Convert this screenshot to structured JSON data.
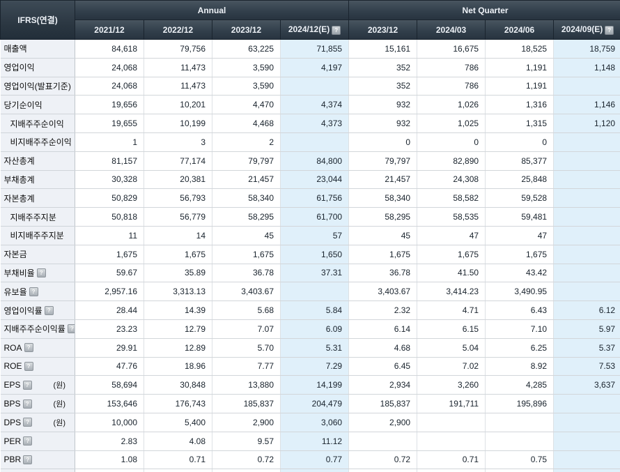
{
  "table": {
    "corner_label": "IFRS(연결)",
    "groups": [
      {
        "label": "Annual"
      },
      {
        "label": "Net Quarter"
      }
    ],
    "columns": [
      {
        "label": "2021/12",
        "estimate": false
      },
      {
        "label": "2022/12",
        "estimate": false
      },
      {
        "label": "2023/12",
        "estimate": false
      },
      {
        "label": "2024/12(E)",
        "estimate": true
      },
      {
        "label": "2023/12",
        "estimate": false
      },
      {
        "label": "2024/03",
        "estimate": false
      },
      {
        "label": "2024/06",
        "estimate": false
      },
      {
        "label": "2024/09(E)",
        "estimate": true
      }
    ],
    "rows": [
      {
        "label": "매출액",
        "indent": false,
        "help": false,
        "unit": "",
        "values": [
          "84,618",
          "79,756",
          "63,225",
          "71,855",
          "15,161",
          "16,675",
          "18,525",
          "18,759"
        ]
      },
      {
        "label": "영업이익",
        "indent": false,
        "help": false,
        "unit": "",
        "values": [
          "24,068",
          "11,473",
          "3,590",
          "4,197",
          "352",
          "786",
          "1,191",
          "1,148"
        ]
      },
      {
        "label": "영업이익(발표기준)",
        "indent": false,
        "help": false,
        "unit": "",
        "values": [
          "24,068",
          "11,473",
          "3,590",
          "",
          "352",
          "786",
          "1,191",
          ""
        ]
      },
      {
        "label": "당기순이익",
        "indent": false,
        "help": false,
        "unit": "",
        "values": [
          "19,656",
          "10,201",
          "4,470",
          "4,374",
          "932",
          "1,026",
          "1,316",
          "1,146"
        ]
      },
      {
        "label": "지배주주순이익",
        "indent": true,
        "help": false,
        "unit": "",
        "values": [
          "19,655",
          "10,199",
          "4,468",
          "4,373",
          "932",
          "1,025",
          "1,315",
          "1,120"
        ]
      },
      {
        "label": "비지배주주순이익",
        "indent": true,
        "help": false,
        "unit": "",
        "values": [
          "1",
          "3",
          "2",
          "",
          "0",
          "0",
          "0",
          ""
        ]
      },
      {
        "label": "자산총계",
        "indent": false,
        "help": false,
        "unit": "",
        "values": [
          "81,157",
          "77,174",
          "79,797",
          "84,800",
          "79,797",
          "82,890",
          "85,377",
          ""
        ]
      },
      {
        "label": "부채총계",
        "indent": false,
        "help": false,
        "unit": "",
        "values": [
          "30,328",
          "20,381",
          "21,457",
          "23,044",
          "21,457",
          "24,308",
          "25,848",
          ""
        ]
      },
      {
        "label": "자본총계",
        "indent": false,
        "help": false,
        "unit": "",
        "values": [
          "50,829",
          "56,793",
          "58,340",
          "61,756",
          "58,340",
          "58,582",
          "59,528",
          ""
        ]
      },
      {
        "label": "지배주주지분",
        "indent": true,
        "help": false,
        "unit": "",
        "values": [
          "50,818",
          "56,779",
          "58,295",
          "61,700",
          "58,295",
          "58,535",
          "59,481",
          ""
        ]
      },
      {
        "label": "비지배주주지분",
        "indent": true,
        "help": false,
        "unit": "",
        "values": [
          "11",
          "14",
          "45",
          "57",
          "45",
          "47",
          "47",
          ""
        ]
      },
      {
        "label": "자본금",
        "indent": false,
        "help": false,
        "unit": "",
        "values": [
          "1,675",
          "1,675",
          "1,675",
          "1,650",
          "1,675",
          "1,675",
          "1,675",
          ""
        ]
      },
      {
        "label": "부채비율",
        "indent": false,
        "help": true,
        "unit": "",
        "values": [
          "59.67",
          "35.89",
          "36.78",
          "37.31",
          "36.78",
          "41.50",
          "43.42",
          ""
        ]
      },
      {
        "label": "유보율",
        "indent": false,
        "help": true,
        "unit": "",
        "values": [
          "2,957.16",
          "3,313.13",
          "3,403.67",
          "",
          "3,403.67",
          "3,414.23",
          "3,490.95",
          ""
        ]
      },
      {
        "label": "영업이익률",
        "indent": false,
        "help": true,
        "unit": "",
        "values": [
          "28.44",
          "14.39",
          "5.68",
          "5.84",
          "2.32",
          "4.71",
          "6.43",
          "6.12"
        ]
      },
      {
        "label": "지배주주순이익률",
        "indent": false,
        "help": true,
        "unit": "",
        "values": [
          "23.23",
          "12.79",
          "7.07",
          "6.09",
          "6.14",
          "6.15",
          "7.10",
          "5.97"
        ]
      },
      {
        "label": "ROA",
        "indent": false,
        "help": true,
        "unit": "",
        "values": [
          "29.91",
          "12.89",
          "5.70",
          "5.31",
          "4.68",
          "5.04",
          "6.25",
          "5.37"
        ]
      },
      {
        "label": "ROE",
        "indent": false,
        "help": true,
        "unit": "",
        "values": [
          "47.76",
          "18.96",
          "7.77",
          "7.29",
          "6.45",
          "7.02",
          "8.92",
          "7.53"
        ]
      },
      {
        "label": "EPS",
        "indent": false,
        "help": true,
        "unit": "(원)",
        "values": [
          "58,694",
          "30,848",
          "13,880",
          "14,199",
          "2,934",
          "3,260",
          "4,285",
          "3,637"
        ]
      },
      {
        "label": "BPS",
        "indent": false,
        "help": true,
        "unit": "(원)",
        "values": [
          "153,646",
          "176,743",
          "185,837",
          "204,479",
          "185,837",
          "191,711",
          "195,896",
          ""
        ]
      },
      {
        "label": "DPS",
        "indent": false,
        "help": true,
        "unit": "(원)",
        "values": [
          "10,000",
          "5,400",
          "2,900",
          "3,060",
          "2,900",
          "",
          "",
          ""
        ]
      },
      {
        "label": "PER",
        "indent": false,
        "help": true,
        "unit": "",
        "values": [
          "2.83",
          "4.08",
          "9.57",
          "11.12",
          "",
          "",
          "",
          ""
        ]
      },
      {
        "label": "PBR",
        "indent": false,
        "help": true,
        "unit": "",
        "values": [
          "1.08",
          "0.71",
          "0.72",
          "0.77",
          "0.72",
          "0.71",
          "0.75",
          ""
        ]
      }
    ],
    "colors": {
      "header_bg": "#303d49",
      "estimate_cell_bg": "#e0f0fa",
      "label_cell_bg": "#eef1f6",
      "cell_bg": "#ffffff"
    },
    "help_icon_glyph": "?"
  }
}
